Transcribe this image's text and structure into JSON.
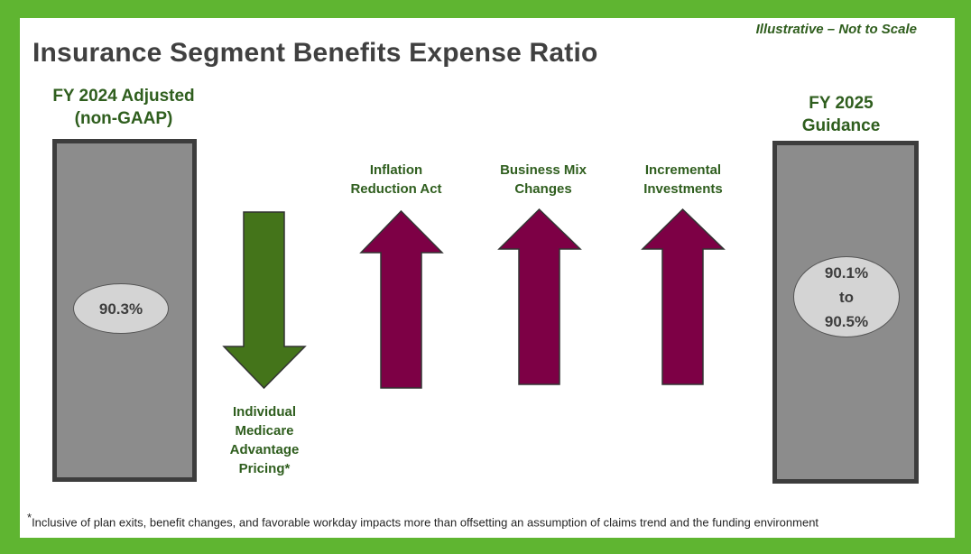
{
  "slide": {
    "note": "Illustrative – Not to Scale",
    "title": "Insurance Segment Benefits Expense Ratio",
    "left_column": {
      "heading_line1": "FY 2024 Adjusted",
      "heading_line2": "(non-GAAP)",
      "value": "90.3%"
    },
    "right_column": {
      "heading_line1": "FY 2025",
      "heading_line2": "Guidance",
      "value_line1": "90.1%",
      "value_line2": "to",
      "value_line3": "90.5%"
    },
    "arrows": [
      {
        "direction": "down",
        "color": "#44741a",
        "label_lines": [
          "Individual",
          "Medicare",
          "Advantage",
          "Pricing*"
        ]
      },
      {
        "direction": "up",
        "color": "#7d0045",
        "label_lines": [
          "Inflation",
          "Reduction Act"
        ]
      },
      {
        "direction": "up",
        "color": "#7d0045",
        "label_lines": [
          "Business Mix",
          "Changes"
        ]
      },
      {
        "direction": "up",
        "color": "#7d0045",
        "label_lines": [
          "Incremental",
          "Investments"
        ]
      }
    ],
    "footnote": {
      "marker": "*",
      "text": "Inclusive of plan exits, benefit changes, and favorable workday impacts more than offsetting  an assumption of claims trend and the funding environment"
    },
    "colors": {
      "frame": "#5fb531",
      "heading_green": "#2f5e1e",
      "bar_fill": "#8c8c8c",
      "bar_border": "#3d3d3d"
    }
  }
}
